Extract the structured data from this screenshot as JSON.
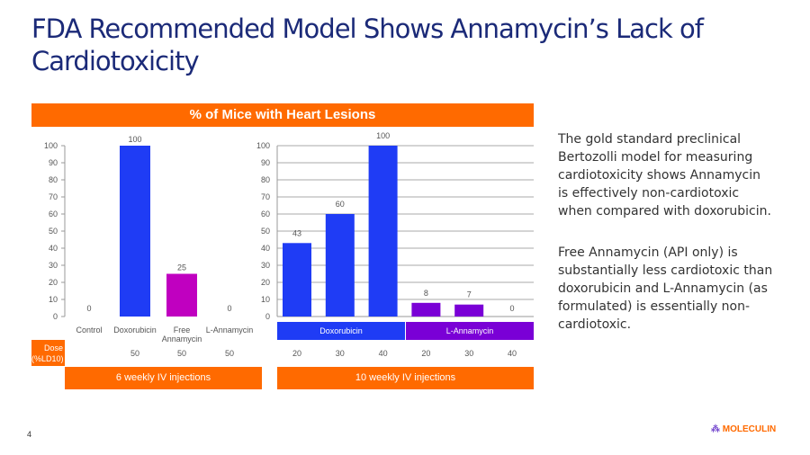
{
  "title": "FDA Recommended Model Shows Annamycin’s Lack of Cardiotoxicity",
  "header": "% of Mice with Heart Lesions",
  "colors": {
    "doxorubicin": "#1f3cf5",
    "free_annamycin": "#c000c0",
    "l_annamycin": "#7a00d6",
    "orange": "#ff6a00",
    "title": "#1b2a78"
  },
  "chart_data": [
    {
      "type": "bar",
      "categories": [
        "Control",
        "Doxorubicin",
        "Free Annamycin",
        "L-Annamycin"
      ],
      "values": [
        0,
        100,
        25,
        0
      ],
      "ylim": [
        0,
        100
      ],
      "yticks": [
        0,
        10,
        20,
        30,
        40,
        50,
        60,
        70,
        80,
        90,
        100
      ],
      "grid": false,
      "dose_label": "Dose (%LD10)",
      "doses": [
        "",
        "50",
        "50",
        "50"
      ],
      "regimen": "6 weekly IV injections"
    },
    {
      "type": "bar",
      "groups": [
        "Doxorubicin",
        "L-Annamycin"
      ],
      "categories": [
        "20",
        "30",
        "40",
        "20",
        "30",
        "40"
      ],
      "values": [
        43,
        60,
        100,
        8,
        7,
        0
      ],
      "ylim": [
        0,
        100
      ],
      "yticks": [
        0,
        10,
        20,
        30,
        40,
        50,
        60,
        70,
        80,
        90,
        100
      ],
      "grid": true,
      "regimen": "10 weekly IV injections"
    }
  ],
  "side_text": [
    "The gold standard preclinical Bertozolli model for measuring cardiotoxicity shows Annamycin is effectively non-cardiotoxic when compared with doxorubicin.",
    "Free Annamycin (API only) is substantially less cardiotoxic than doxorubicin and L-Annamycin (as formulated) is essentially non-cardiotoxic."
  ],
  "page_number": "4",
  "logo": "MOLECULIN"
}
